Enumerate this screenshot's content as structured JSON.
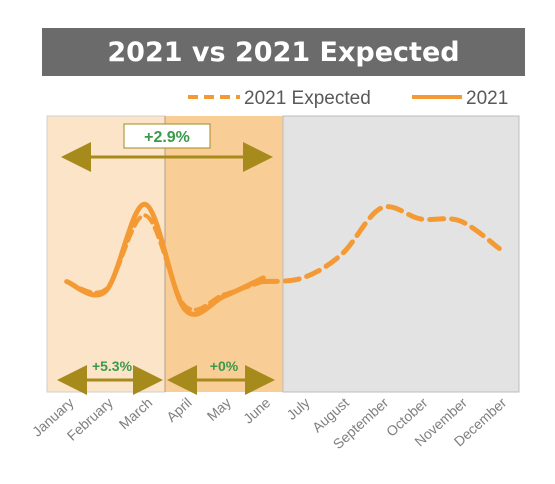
{
  "chart_data": {
    "type": "line",
    "title": "2021 vs 2021 Expected",
    "categories": [
      "January",
      "February",
      "March",
      "April",
      "May",
      "June",
      "July",
      "August",
      "September",
      "October",
      "November",
      "December"
    ],
    "series": [
      {
        "name": "2021 Expected",
        "style": "dashed",
        "values": [
          null,
          null,
          null,
          null,
          null,
          60,
          62,
          75,
          100,
          94,
          93,
          78
        ]
      },
      {
        "name": "2021",
        "style": "solid",
        "values": [
          60,
          55,
          102,
          45,
          52,
          62,
          null,
          null,
          null,
          null,
          null,
          null
        ]
      }
    ],
    "overlay_expected_jan_jun": [
      60,
      56,
      96,
      47,
      53,
      60
    ],
    "ylim": [
      0,
      150
    ],
    "grid": false,
    "legend_position": "top-right",
    "annotations": {
      "top_span": "+2.9%",
      "q1_span": "+5.3%",
      "q2_span": "+0%"
    },
    "colors": {
      "line": "#f39a34",
      "q1_band": "#fce4c8",
      "q2_band": "#f9cd96",
      "rest_band": "#e3e3e3",
      "arrow": "#a68a1c",
      "annotation_text": "#3a9a4a",
      "title_bg": "#6b6b6b"
    }
  }
}
